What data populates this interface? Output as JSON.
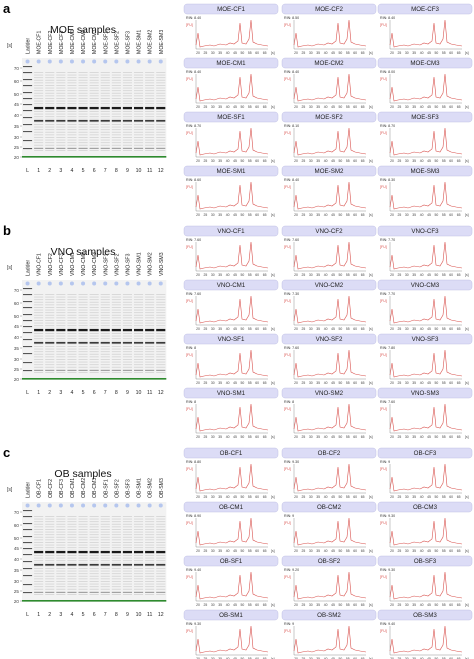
{
  "panels": [
    {
      "letter": "a",
      "title": "MOE samples",
      "unit": "[s]",
      "lanes": [
        "Ladder",
        "MOE-CF1",
        "MOE-CF2",
        "MOE-CF3",
        "MOE-CM1",
        "MOE-CM2",
        "MOE-CM3",
        "MOE-SF1",
        "MOE-SF2",
        "MOE-SF3",
        "MOE-SM1",
        "MOE-SM2",
        "MOE-SM3"
      ],
      "lane_numbers": [
        "L",
        "1",
        "2",
        "3",
        "4",
        "5",
        "6",
        "7",
        "8",
        "9",
        "10",
        "11",
        "12"
      ],
      "y_ticks": [
        "70",
        "60",
        "50",
        "45",
        "40",
        "35",
        "30",
        "25",
        "20"
      ],
      "electropherograms": [
        {
          "name": "MOE-CF1",
          "rin": "RIN: 8.40"
        },
        {
          "name": "MOE-CF2",
          "rin": "RIN: 8.50"
        },
        {
          "name": "MOE-CF3",
          "rin": "RIN: 8.40"
        },
        {
          "name": "MOE-CM1",
          "rin": "RIN: 8.40"
        },
        {
          "name": "MOE-CM2",
          "rin": "RIN: 8.40"
        },
        {
          "name": "MOE-CM3",
          "rin": "RIN: 8.00"
        },
        {
          "name": "MOE-SF1",
          "rin": "RIN: 8.70"
        },
        {
          "name": "MOE-SF2",
          "rin": "RIN: 8.10"
        },
        {
          "name": "MOE-SF3",
          "rin": "RIN: 8.70"
        },
        {
          "name": "MOE-SM1",
          "rin": "RIN: 8.60"
        },
        {
          "name": "MOE-SM2",
          "rin": "RIN: 8.40"
        },
        {
          "name": "MOE-SM3",
          "rin": "RIN: 8.30"
        }
      ]
    },
    {
      "letter": "b",
      "title": "VNO samples",
      "unit": "[s]",
      "lanes": [
        "Ladder",
        "VNO-CF1",
        "VNO-CF2",
        "VNO-CF3",
        "VNO-CM1",
        "VNO-CM2",
        "VNO-CM3",
        "VNO-SF1",
        "VNO-SF2",
        "VNO-SF3",
        "VNO-SM1",
        "VNO-SM2",
        "VNO-SM3"
      ],
      "lane_numbers": [
        "L",
        "1",
        "2",
        "3",
        "4",
        "5",
        "6",
        "7",
        "8",
        "9",
        "10",
        "11",
        "12"
      ],
      "y_ticks": [
        "70",
        "60",
        "50",
        "45",
        "40",
        "35",
        "30",
        "25",
        "20"
      ],
      "electropherograms": [
        {
          "name": "VNO-CF1",
          "rin": "RIN: 7.60"
        },
        {
          "name": "VNO-CF2",
          "rin": "RIN: 7.60"
        },
        {
          "name": "VNO-CF3",
          "rin": "RIN: 7.70"
        },
        {
          "name": "VNO-CM1",
          "rin": "RIN: 7.60"
        },
        {
          "name": "VNO-CM2",
          "rin": "RIN: 7.30"
        },
        {
          "name": "VNO-CM3",
          "rin": "RIN: 7.70"
        },
        {
          "name": "VNO-SF1",
          "rin": "RIN: 8"
        },
        {
          "name": "VNO-SF2",
          "rin": "RIN: 7.60"
        },
        {
          "name": "VNO-SF3",
          "rin": "RIN: 7.80"
        },
        {
          "name": "VNO-SM1",
          "rin": "RIN: 8"
        },
        {
          "name": "VNO-SM2",
          "rin": "RIN: 8"
        },
        {
          "name": "VNO-SM3",
          "rin": "RIN: 7.60"
        }
      ]
    },
    {
      "letter": "c",
      "title": "OB samples",
      "unit": "[s]",
      "lanes": [
        "Ladder",
        "OB-CF1",
        "OB-CF2",
        "OB-CF3",
        "OB-CM1",
        "OB-CM2",
        "OB-CM3",
        "OB-SF1",
        "OB-SF2",
        "OB-SF3",
        "OB-SM1",
        "OB-SM2",
        "OB-SM3"
      ],
      "lane_numbers": [
        "L",
        "1",
        "2",
        "3",
        "4",
        "5",
        "6",
        "7",
        "8",
        "9",
        "10",
        "11",
        "12"
      ],
      "y_ticks": [
        "70",
        "60",
        "50",
        "45",
        "40",
        "35",
        "30",
        "25",
        "20"
      ],
      "electropherograms": [
        {
          "name": "OB-CF1",
          "rin": "RIN: 8.80"
        },
        {
          "name": "OB-CF2",
          "rin": "RIN: 9.30"
        },
        {
          "name": "OB-CF3",
          "rin": "RIN: 9"
        },
        {
          "name": "OB-CM1",
          "rin": "RIN: 8.90"
        },
        {
          "name": "OB-CM2",
          "rin": "RIN: 9"
        },
        {
          "name": "OB-CM3",
          "rin": "RIN: 9.30"
        },
        {
          "name": "OB-SF1",
          "rin": "RIN: 9.40"
        },
        {
          "name": "OB-SF2",
          "rin": "RIN: 9.20"
        },
        {
          "name": "OB-SF3",
          "rin": "RIN: 9.30"
        },
        {
          "name": "OB-SM1",
          "rin": "RIN: 9.30"
        },
        {
          "name": "OB-SM2",
          "rin": "RIN: 9"
        },
        {
          "name": "OB-SM3",
          "rin": "RIN: 9.40"
        }
      ]
    }
  ],
  "electropherogram_axis": {
    "y_label": "[FU]",
    "x_label": "[s]",
    "x_ticks": [
      "20",
      "25",
      "30",
      "35",
      "40",
      "45",
      "50",
      "55",
      "60",
      "65"
    ]
  },
  "colors": {
    "trace": "#d9534f",
    "header_bg": "#dcdcf6",
    "header_border": "#b8b8e0",
    "marker": "#2e8b2e",
    "well_dot": "#b5c6ee"
  }
}
